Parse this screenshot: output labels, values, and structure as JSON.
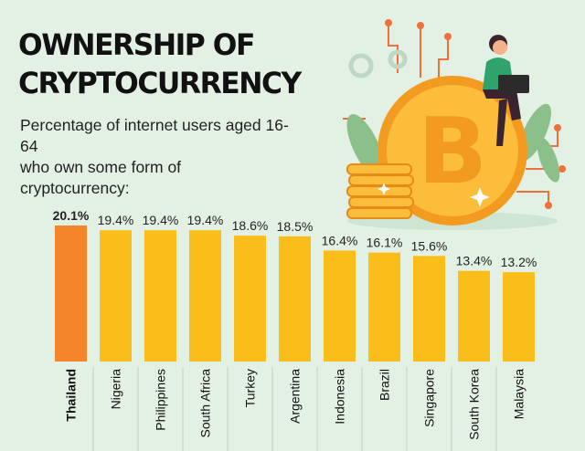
{
  "header": {
    "title_line1": "OWNERSHIP OF",
    "title_line2": "CRYPTOCURRENCY",
    "subtitle_line1": "Percentage of internet users aged 16-64",
    "subtitle_line2": "who own some form of cryptocurrency:"
  },
  "colors": {
    "background": "#e3f1e5",
    "highlight_bar": "#f5852a",
    "bar": "#fbbd1a",
    "coin": "#f9a825"
  },
  "chart_data": {
    "type": "bar",
    "categories": [
      "Thailand",
      "Nigeria",
      "Philippines",
      "South Africa",
      "Turkey",
      "Argentina",
      "Indonesia",
      "Brazil",
      "Singapore",
      "South Korea",
      "Malaysia"
    ],
    "values": [
      20.1,
      19.4,
      19.4,
      19.4,
      18.6,
      18.5,
      16.4,
      16.1,
      15.6,
      13.4,
      13.2
    ],
    "value_labels": [
      "20.1%",
      "19.4%",
      "19.4%",
      "19.4%",
      "18.6%",
      "18.5%",
      "16.4%",
      "16.1%",
      "15.6%",
      "13.4%",
      "13.2%"
    ],
    "highlight_index": 0,
    "title": "OWNERSHIP OF CRYPTOCURRENCY",
    "subtitle": "Percentage of internet users aged 16-64 who own some form of cryptocurrency:",
    "xlabel": "",
    "ylabel": "",
    "ylim": [
      0,
      20.1
    ],
    "grid": false,
    "legend": "none"
  },
  "illustration": {
    "icons": [
      "bitcoin-coin-icon",
      "coin-stack-icon",
      "gear-icon",
      "person-with-laptop-icon",
      "leaf-icon",
      "sparkle-icon"
    ]
  }
}
